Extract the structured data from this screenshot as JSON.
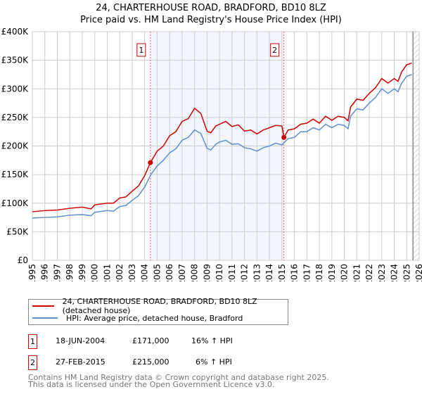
{
  "chart_data": {
    "type": "line",
    "title": "24, CHARTERHOUSE ROAD, BRADFORD, BD10 8LZ",
    "subtitle": "Price paid vs. HM Land Registry's House Price Index (HPI)",
    "xlim": [
      1995,
      2026
    ],
    "ylim": [
      0,
      400000
    ],
    "x_ticks": [
      "1995",
      "1996",
      "1997",
      "1998",
      "1999",
      "2000",
      "2001",
      "2002",
      "2003",
      "2004",
      "2005",
      "2006",
      "2007",
      "2008",
      "2009",
      "2010",
      "2011",
      "2012",
      "2013",
      "2014",
      "2015",
      "2016",
      "2017",
      "2018",
      "2019",
      "2020",
      "2021",
      "2022",
      "2023",
      "2024",
      "2025",
      "2026"
    ],
    "y_ticks": [
      {
        "v": 0,
        "label": "£0"
      },
      {
        "v": 50000,
        "label": "£50K"
      },
      {
        "v": 100000,
        "label": "£100K"
      },
      {
        "v": 150000,
        "label": "£150K"
      },
      {
        "v": 200000,
        "label": "£200K"
      },
      {
        "v": 250000,
        "label": "£250K"
      },
      {
        "v": 300000,
        "label": "£300K"
      },
      {
        "v": 350000,
        "label": "£350K"
      },
      {
        "v": 400000,
        "label": "£400K"
      }
    ],
    "grid": true,
    "shaded_range": [
      2004.46,
      2015.16
    ],
    "forecast_from": 2025.5,
    "series": [
      {
        "name": "24, CHARTERHOUSE ROAD, BRADFORD, BD10 8LZ (detached house)",
        "color": "#cc0000",
        "x": [
          1995,
          1996,
          1997,
          1998,
          1999,
          1999.7,
          2000,
          2001,
          2001.5,
          2002,
          2002.5,
          2003,
          2003.5,
          2004,
          2004.46,
          2005,
          2005.5,
          2006,
          2006.5,
          2007,
          2007.5,
          2008,
          2008.5,
          2009,
          2009.3,
          2009.7,
          2010,
          2010.5,
          2011,
          2011.5,
          2012,
          2012.5,
          2013,
          2013.5,
          2014,
          2014.5,
          2015,
          2015.16,
          2015.5,
          2016,
          2016.5,
          2017,
          2017.5,
          2018,
          2018.5,
          2019,
          2019.5,
          2020,
          2020.3,
          2020.5,
          2021,
          2021.5,
          2022,
          2022.5,
          2023,
          2023.5,
          2024,
          2024.3,
          2024.6,
          2025,
          2025.4
        ],
        "y": [
          85000,
          87000,
          88000,
          91000,
          93000,
          90000,
          97000,
          100000,
          100000,
          109000,
          111000,
          121000,
          130000,
          148000,
          171000,
          191000,
          200000,
          218000,
          225000,
          243000,
          248000,
          266000,
          257000,
          226000,
          223000,
          235000,
          238000,
          243000,
          234000,
          237000,
          226000,
          228000,
          221000,
          228000,
          232000,
          236000,
          235000,
          215000,
          228000,
          230000,
          238000,
          240000,
          247000,
          240000,
          252000,
          245000,
          252000,
          250000,
          244000,
          268000,
          282000,
          280000,
          292000,
          302000,
          318000,
          310000,
          318000,
          313000,
          330000,
          342000,
          345000
        ]
      },
      {
        "name": "HPI: Average price, detached house, Bradford",
        "color": "#5b8fd0",
        "x": [
          1995,
          1996,
          1997,
          1998,
          1999,
          1999.7,
          2000,
          2001,
          2001.5,
          2002,
          2002.5,
          2003,
          2003.5,
          2004,
          2004.5,
          2005,
          2005.5,
          2006,
          2006.5,
          2007,
          2007.5,
          2008,
          2008.5,
          2009,
          2009.3,
          2009.7,
          2010,
          2010.5,
          2011,
          2011.5,
          2012,
          2012.5,
          2013,
          2013.5,
          2014,
          2014.5,
          2015,
          2015.5,
          2016,
          2016.5,
          2017,
          2017.5,
          2018,
          2018.5,
          2019,
          2019.5,
          2020,
          2020.3,
          2020.5,
          2021,
          2021.5,
          2022,
          2022.5,
          2023,
          2023.5,
          2024,
          2024.3,
          2024.6,
          2025,
          2025.4
        ],
        "y": [
          74000,
          75000,
          76000,
          79000,
          80000,
          78000,
          84000,
          87000,
          86000,
          94000,
          96000,
          105000,
          113000,
          128000,
          150000,
          165000,
          175000,
          188000,
          195000,
          210000,
          215000,
          228000,
          222000,
          196000,
          193000,
          203000,
          207000,
          210000,
          203000,
          204000,
          197000,
          195000,
          191000,
          197000,
          200000,
          205000,
          202000,
          213000,
          215000,
          225000,
          225000,
          232000,
          228000,
          238000,
          232000,
          238000,
          236000,
          230000,
          252000,
          265000,
          263000,
          275000,
          285000,
          300000,
          292000,
          300000,
          295000,
          310000,
          322000,
          325000
        ]
      }
    ],
    "sales": [
      {
        "label": "1",
        "x": 2004.46,
        "y": 171000
      },
      {
        "label": "2",
        "x": 2015.16,
        "y": 215000
      }
    ]
  },
  "table": [
    {
      "n": "1",
      "date": "18-JUN-2004",
      "price": "£171,000",
      "hpi": "16% ↑ HPI"
    },
    {
      "n": "2",
      "date": "27-FEB-2015",
      "price": "£215,000",
      "hpi": "6% ↑ HPI"
    }
  ],
  "footer": [
    "Contains HM Land Registry data © Crown copyright and database right 2025.",
    "This data is licensed under the Open Government Licence v3.0."
  ]
}
